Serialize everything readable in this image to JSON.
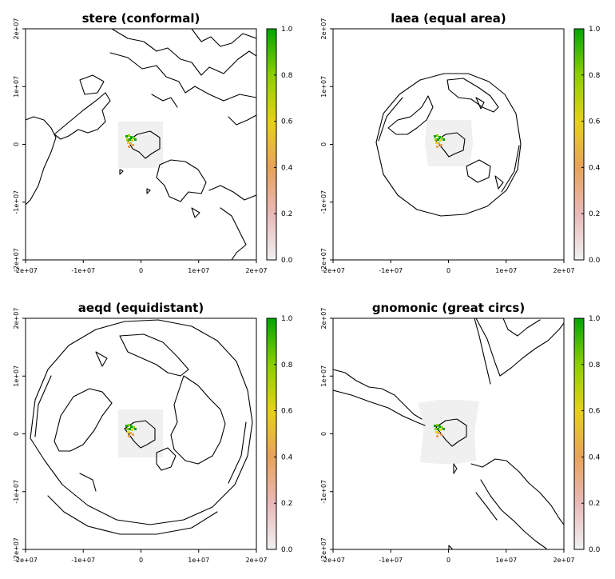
{
  "figure": {
    "panels": [
      {
        "id": "stere",
        "title": "stere (conformal)"
      },
      {
        "id": "laea",
        "title": "laea (equal area)"
      },
      {
        "id": "aeqd",
        "title": "aeqd (equidistant)"
      },
      {
        "id": "gnomonic",
        "title": "gnomonic (great circs)"
      }
    ],
    "axes": {
      "x_ticks": [
        "-2e+07",
        "-1e+07",
        "0",
        "1e+07",
        "2e+07"
      ],
      "y_ticks": [
        "-2e+07",
        "-1e+07",
        "0",
        "1e+07",
        "2e+07"
      ]
    },
    "legend": {
      "ticks": [
        "0.0",
        "0.2",
        "0.4",
        "0.6",
        "0.8",
        "1.0"
      ],
      "colors": [
        "#f1f1f1",
        "#e9b9b9",
        "#e8a35a",
        "#e6d11a",
        "#8ccf00",
        "#00a600"
      ],
      "range": [
        0,
        1
      ]
    },
    "colors": {
      "background": "#ffffff",
      "raster_extent": "#f0f0f0",
      "coastline": "#000000",
      "high_value": "#00a600",
      "low_value": "#e8a35a"
    }
  }
}
